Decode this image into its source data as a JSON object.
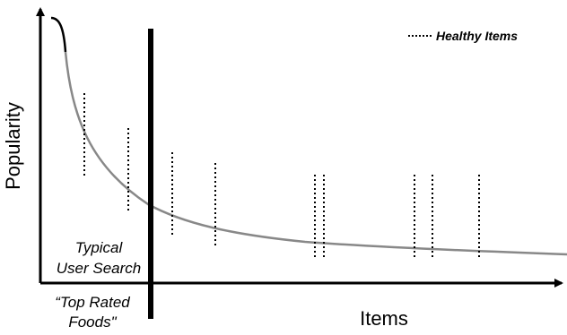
{
  "axes": {
    "y_label": "Popularity",
    "x_label": "Items"
  },
  "legend": {
    "label": "Healthy Items"
  },
  "annotations": {
    "typical_search_line1": "Typical",
    "typical_search_line2": "User Search",
    "example_query_line1": "“Top Rated",
    "example_query_line2": "Foods\""
  },
  "colors": {
    "curve_head": "#000000",
    "curve_tail": "#888888",
    "markers": "#000000",
    "divider": "#000000"
  }
}
